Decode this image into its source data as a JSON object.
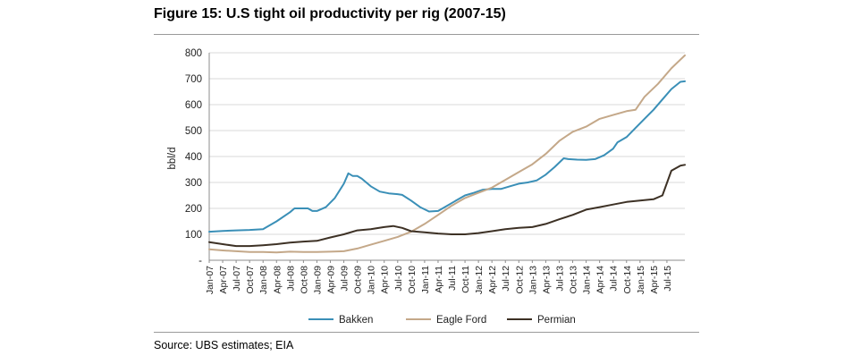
{
  "title": "Figure 15: U.S tight oil productivity per rig (2007-15)",
  "source": "Source:  UBS estimates; EIA",
  "chart_data": {
    "type": "line",
    "title": "Figure 15: U.S tight oil productivity per rig (2007-15)",
    "xlabel": "",
    "ylabel": "bbl/d",
    "ylim": [
      0,
      800
    ],
    "y_ticks": [
      0,
      100,
      200,
      300,
      400,
      500,
      600,
      700,
      800
    ],
    "y_tick_labels": [
      "-",
      "100",
      "200",
      "300",
      "400",
      "500",
      "600",
      "700",
      "800"
    ],
    "grid": "horizontal",
    "legend": "bottom",
    "x_tick_labels": [
      "Jan-07",
      "Apr-07",
      "Jul-07",
      "Oct-07",
      "Jan-08",
      "Apr-08",
      "Jul-08",
      "Oct-08",
      "Jan-09",
      "Apr-09",
      "Jul-09",
      "Oct-09",
      "Jan-10",
      "Apr-10",
      "Jul-10",
      "Oct-10",
      "Jan-11",
      "Apr-11",
      "Jul-11",
      "Oct-11",
      "Jan-12",
      "Apr-12",
      "Jul-12",
      "Oct-12",
      "Jan-13",
      "Apr-13",
      "Jul-13",
      "Oct-13",
      "Jan-14",
      "Apr-14",
      "Jul-14",
      "Oct-14",
      "Jan-15",
      "Apr-15",
      "Jul-15"
    ],
    "series": [
      {
        "name": "Bakken",
        "color": "#3a8fb7",
        "points": [
          [
            "2007-01",
            110
          ],
          [
            "2007-04",
            113
          ],
          [
            "2007-07",
            115
          ],
          [
            "2007-10",
            117
          ],
          [
            "2008-01",
            120
          ],
          [
            "2008-04",
            150
          ],
          [
            "2008-07",
            185
          ],
          [
            "2008-08",
            200
          ],
          [
            "2008-10",
            200
          ],
          [
            "2008-11",
            200
          ],
          [
            "2008-12",
            190
          ],
          [
            "2009-01",
            190
          ],
          [
            "2009-03",
            205
          ],
          [
            "2009-05",
            240
          ],
          [
            "2009-07",
            295
          ],
          [
            "2009-08",
            335
          ],
          [
            "2009-09",
            325
          ],
          [
            "2009-10",
            325
          ],
          [
            "2009-11",
            315
          ],
          [
            "2010-01",
            285
          ],
          [
            "2010-03",
            265
          ],
          [
            "2010-05",
            258
          ],
          [
            "2010-07",
            255
          ],
          [
            "2010-08",
            252
          ],
          [
            "2010-10",
            230
          ],
          [
            "2010-12",
            205
          ],
          [
            "2011-02",
            188
          ],
          [
            "2011-04",
            190
          ],
          [
            "2011-06",
            210
          ],
          [
            "2011-08",
            230
          ],
          [
            "2011-10",
            250
          ],
          [
            "2011-12",
            260
          ],
          [
            "2012-02",
            272
          ],
          [
            "2012-04",
            275
          ],
          [
            "2012-06",
            275
          ],
          [
            "2012-08",
            285
          ],
          [
            "2012-10",
            295
          ],
          [
            "2012-12",
            300
          ],
          [
            "2013-02",
            308
          ],
          [
            "2013-04",
            330
          ],
          [
            "2013-06",
            360
          ],
          [
            "2013-08",
            393
          ],
          [
            "2013-09",
            390
          ],
          [
            "2013-11",
            388
          ],
          [
            "2014-01",
            387
          ],
          [
            "2014-03",
            390
          ],
          [
            "2014-05",
            405
          ],
          [
            "2014-07",
            430
          ],
          [
            "2014-08",
            455
          ],
          [
            "2014-10",
            475
          ],
          [
            "2014-12",
            510
          ],
          [
            "2015-02",
            545
          ],
          [
            "2015-04",
            580
          ],
          [
            "2015-06",
            620
          ],
          [
            "2015-08",
            660
          ],
          [
            "2015-10",
            688
          ],
          [
            "2015-11",
            690
          ]
        ]
      },
      {
        "name": "Eagle Ford",
        "color": "#c4a889",
        "points": [
          [
            "2007-01",
            42
          ],
          [
            "2007-04",
            38
          ],
          [
            "2007-07",
            35
          ],
          [
            "2007-10",
            32
          ],
          [
            "2008-01",
            32
          ],
          [
            "2008-04",
            30
          ],
          [
            "2008-07",
            33
          ],
          [
            "2008-10",
            32
          ],
          [
            "2009-01",
            32
          ],
          [
            "2009-04",
            33
          ],
          [
            "2009-07",
            35
          ],
          [
            "2009-10",
            45
          ],
          [
            "2010-01",
            60
          ],
          [
            "2010-04",
            75
          ],
          [
            "2010-07",
            90
          ],
          [
            "2010-10",
            110
          ],
          [
            "2011-01",
            140
          ],
          [
            "2011-04",
            175
          ],
          [
            "2011-07",
            210
          ],
          [
            "2011-10",
            240
          ],
          [
            "2012-01",
            260
          ],
          [
            "2012-04",
            280
          ],
          [
            "2012-07",
            310
          ],
          [
            "2012-10",
            340
          ],
          [
            "2013-01",
            370
          ],
          [
            "2013-04",
            410
          ],
          [
            "2013-07",
            460
          ],
          [
            "2013-10",
            495
          ],
          [
            "2014-01",
            515
          ],
          [
            "2014-04",
            545
          ],
          [
            "2014-07",
            560
          ],
          [
            "2014-10",
            575
          ],
          [
            "2014-12",
            580
          ],
          [
            "2015-02",
            630
          ],
          [
            "2015-05",
            680
          ],
          [
            "2015-08",
            740
          ],
          [
            "2015-11",
            790
          ]
        ]
      },
      {
        "name": "Permian",
        "color": "#3d3125",
        "points": [
          [
            "2007-01",
            70
          ],
          [
            "2007-04",
            62
          ],
          [
            "2007-07",
            55
          ],
          [
            "2007-10",
            55
          ],
          [
            "2008-01",
            58
          ],
          [
            "2008-04",
            62
          ],
          [
            "2008-07",
            68
          ],
          [
            "2008-10",
            72
          ],
          [
            "2009-01",
            75
          ],
          [
            "2009-04",
            88
          ],
          [
            "2009-07",
            100
          ],
          [
            "2009-10",
            115
          ],
          [
            "2010-01",
            120
          ],
          [
            "2010-04",
            128
          ],
          [
            "2010-06",
            132
          ],
          [
            "2010-08",
            125
          ],
          [
            "2010-10",
            112
          ],
          [
            "2011-01",
            108
          ],
          [
            "2011-04",
            103
          ],
          [
            "2011-07",
            100
          ],
          [
            "2011-10",
            100
          ],
          [
            "2012-01",
            105
          ],
          [
            "2012-04",
            112
          ],
          [
            "2012-07",
            120
          ],
          [
            "2012-10",
            125
          ],
          [
            "2013-01",
            128
          ],
          [
            "2013-04",
            140
          ],
          [
            "2013-07",
            158
          ],
          [
            "2013-10",
            175
          ],
          [
            "2014-01",
            195
          ],
          [
            "2014-04",
            205
          ],
          [
            "2014-07",
            215
          ],
          [
            "2014-10",
            225
          ],
          [
            "2015-01",
            230
          ],
          [
            "2015-04",
            235
          ],
          [
            "2015-06",
            250
          ],
          [
            "2015-08",
            345
          ],
          [
            "2015-10",
            365
          ],
          [
            "2015-11",
            368
          ]
        ]
      }
    ]
  }
}
